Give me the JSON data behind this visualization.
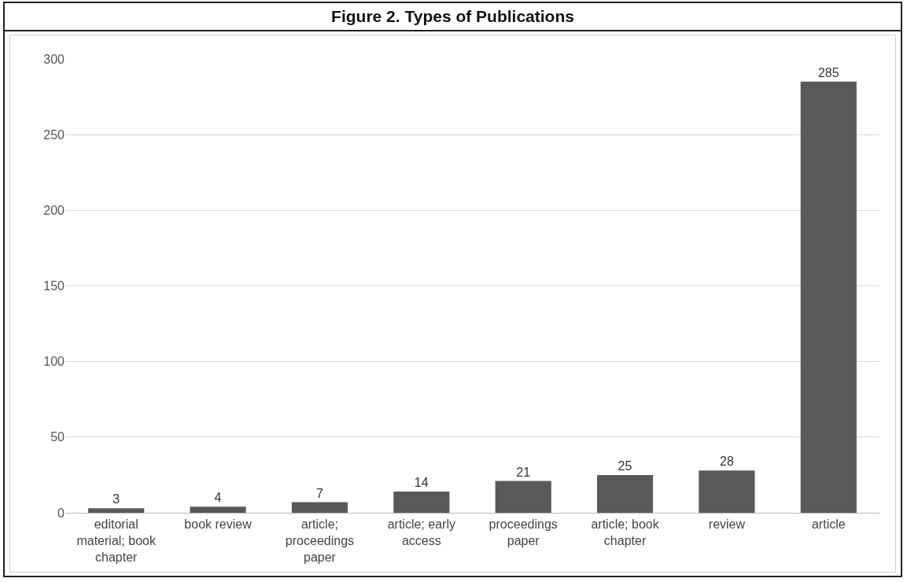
{
  "chart_data": {
    "type": "bar",
    "title": "Figure 2. Types of Publications",
    "categories": [
      "editorial material; book chapter",
      "book review",
      "article; proceedings paper",
      "article; early access",
      "proceedings paper",
      "article; book chapter",
      "review",
      "article"
    ],
    "values": [
      3,
      4,
      7,
      14,
      21,
      25,
      28,
      285
    ],
    "color": "#595959",
    "ylim": [
      0,
      300
    ],
    "yticks": [
      0,
      50,
      100,
      150,
      200,
      250,
      300
    ],
    "grid": "y",
    "data_labels": true,
    "legend": false
  }
}
